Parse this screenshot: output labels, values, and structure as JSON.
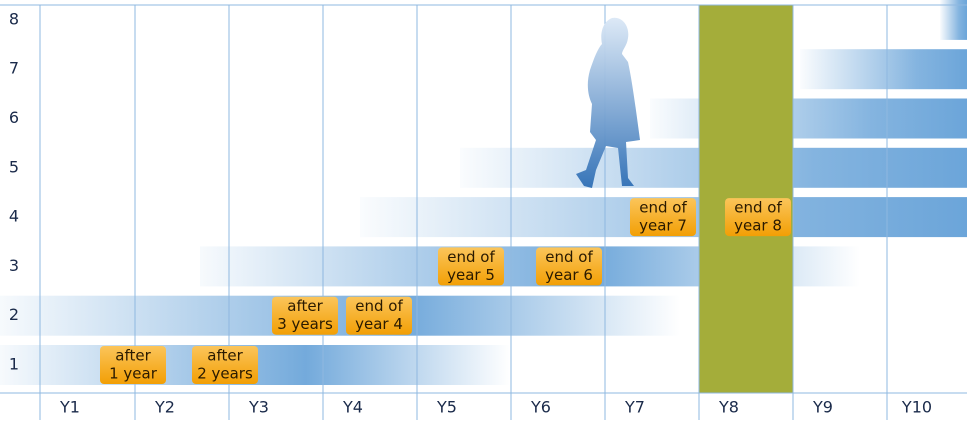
{
  "rows": [
    "1",
    "2",
    "3",
    "4",
    "5",
    "6",
    "7",
    "8"
  ],
  "columns": [
    "Y1",
    "Y2",
    "Y3",
    "Y4",
    "Y5",
    "Y6",
    "Y7",
    "Y8",
    "Y9",
    "Y10"
  ],
  "badges": [
    {
      "lines": [
        "after",
        "1 year"
      ]
    },
    {
      "lines": [
        "after",
        "2 years"
      ]
    },
    {
      "lines": [
        "after",
        "3 years"
      ]
    },
    {
      "lines": [
        "end of",
        "year 4"
      ]
    },
    {
      "lines": [
        "end of",
        "year 5"
      ]
    },
    {
      "lines": [
        "end of",
        "year 6"
      ]
    },
    {
      "lines": [
        "end of",
        "year 7"
      ]
    },
    {
      "lines": [
        "end of",
        "year 8"
      ]
    }
  ]
}
